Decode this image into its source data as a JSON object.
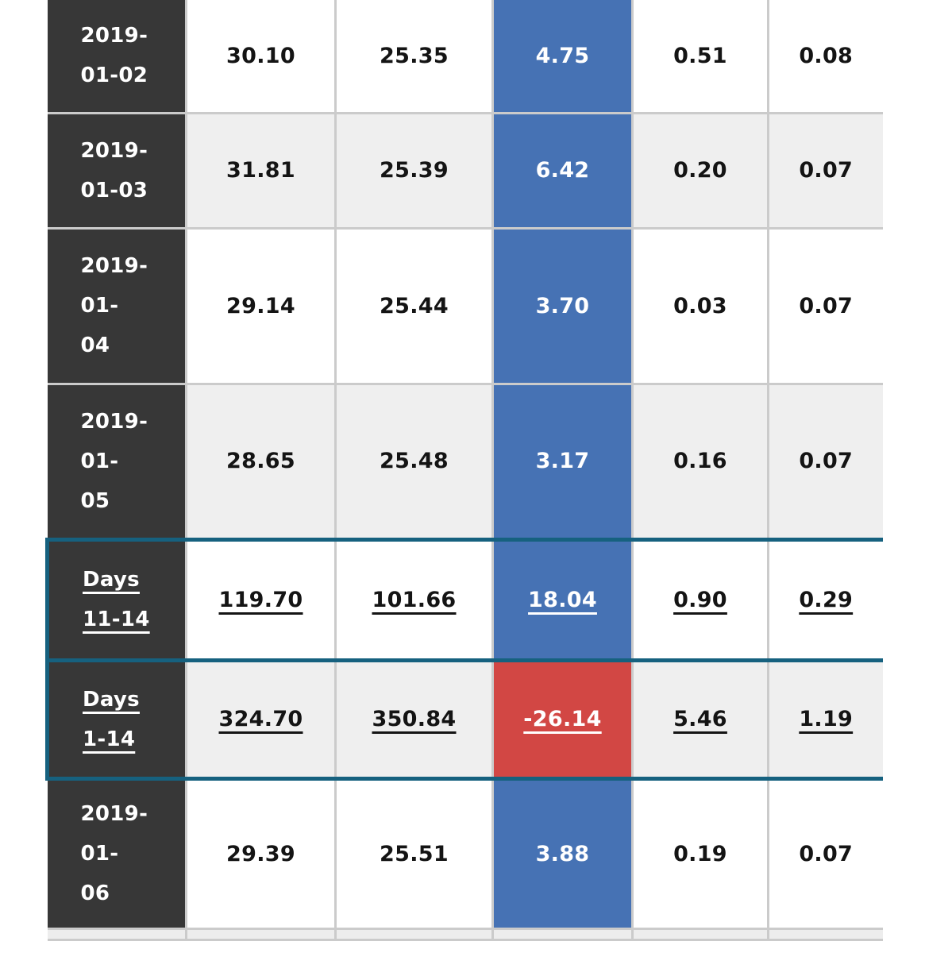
{
  "colors": {
    "dark_cell": "#373737",
    "row_white": "#ffffff",
    "row_alt_gray": "#efefef",
    "blue_highlight": "#4672b4",
    "red_highlight": "#d24744",
    "summary_outline_teal": "#16617f",
    "grid_border": "#cbcbcb",
    "text_dark": "#141414",
    "text_light": "#ffffff"
  },
  "chart_data": {
    "type": "table",
    "highlight_column_index": 2,
    "layout_note": "leftmost column = dark label cell; third value column = blue highlight; summary rows outlined teal with underlined link text",
    "rows": [
      {
        "label": "2019-01-02",
        "label_lines": [
          "2019-",
          "01-02"
        ],
        "values": [
          "30.10",
          "25.35",
          "4.75",
          "0.51",
          "0.08"
        ],
        "shade": "white",
        "summary": false
      },
      {
        "label": "2019-01-03",
        "label_lines": [
          "2019-",
          "01-03"
        ],
        "values": [
          "31.81",
          "25.39",
          "6.42",
          "0.20",
          "0.07"
        ],
        "shade": "gray",
        "summary": false
      },
      {
        "label": "2019-01-04",
        "label_lines": [
          "2019-",
          "01-",
          "04"
        ],
        "values": [
          "29.14",
          "25.44",
          "3.70",
          "0.03",
          "0.07"
        ],
        "shade": "white",
        "summary": false
      },
      {
        "label": "2019-01-05",
        "label_lines": [
          "2019-",
          "01-",
          "05"
        ],
        "values": [
          "28.65",
          "25.48",
          "3.17",
          "0.16",
          "0.07"
        ],
        "shade": "gray",
        "summary": false
      },
      {
        "label": "Days 11-14",
        "label_lines": [
          "Days",
          "11-14"
        ],
        "values": [
          "119.70",
          "101.66",
          "18.04",
          "0.90",
          "0.29"
        ],
        "shade": "white",
        "summary": true
      },
      {
        "label": "Days 1-14",
        "label_lines": [
          "Days",
          "1-14"
        ],
        "values": [
          "324.70",
          "350.84",
          "-26.14",
          "5.46",
          "1.19"
        ],
        "shade": "gray",
        "summary": true
      },
      {
        "label": "2019-01-06",
        "label_lines": [
          "2019-",
          "01-",
          "06"
        ],
        "values": [
          "29.39",
          "25.51",
          "3.88",
          "0.19",
          "0.07"
        ],
        "shade": "white",
        "summary": false
      }
    ]
  }
}
